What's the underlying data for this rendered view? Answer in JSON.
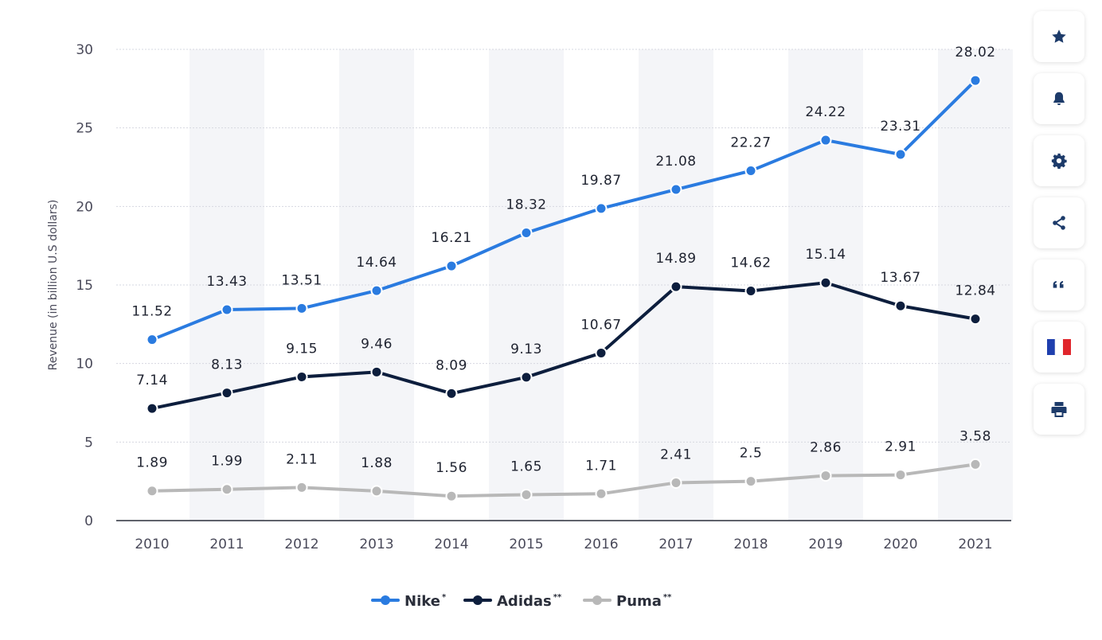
{
  "chart_data": {
    "type": "line",
    "categories": [
      "2010",
      "2011",
      "2012",
      "2013",
      "2014",
      "2015",
      "2016",
      "2017",
      "2018",
      "2019",
      "2020",
      "2021"
    ],
    "ylabel": "Revenue (in billion U.S dollars)",
    "xlabel": "",
    "ylim": [
      0,
      30
    ],
    "yticks": [
      0,
      5,
      10,
      15,
      20,
      25,
      30
    ],
    "ytick_labels": [
      "0",
      "5",
      "10",
      "15",
      "20",
      "25",
      "30"
    ],
    "grid": true,
    "legend_position": "bottom",
    "series": [
      {
        "name": "Nike",
        "marker": "*",
        "color": "#2a7be0",
        "values": [
          11.52,
          13.43,
          13.51,
          14.64,
          16.21,
          18.32,
          19.87,
          21.08,
          22.27,
          24.22,
          23.31,
          28.02
        ],
        "labels": [
          "11.52",
          "13.43",
          "13.51",
          "14.64",
          "16.21",
          "18.32",
          "19.87",
          "21.08",
          "22.27",
          "24.22",
          "23.31",
          "28.02"
        ]
      },
      {
        "name": "Adidas",
        "marker": "**",
        "color": "#0d1e3d",
        "values": [
          7.14,
          8.13,
          9.15,
          9.46,
          8.09,
          9.13,
          10.67,
          14.89,
          14.62,
          15.14,
          13.67,
          12.84
        ],
        "labels": [
          "7.14",
          "8.13",
          "9.15",
          "9.46",
          "8.09",
          "9.13",
          "10.67",
          "14.89",
          "14.62",
          "15.14",
          "13.67",
          "12.84"
        ]
      },
      {
        "name": "Puma",
        "marker": "**",
        "color": "#b8b8b8",
        "values": [
          1.89,
          1.99,
          2.11,
          1.88,
          1.56,
          1.65,
          1.71,
          2.41,
          2.5,
          2.86,
          2.91,
          3.58
        ],
        "labels": [
          "1.89",
          "1.99",
          "2.11",
          "1.88",
          "1.56",
          "1.65",
          "1.71",
          "2.41",
          "2.5",
          "2.86",
          "2.91",
          "3.58"
        ]
      }
    ]
  },
  "toolbar": {
    "icon_color": "#1d3b6a",
    "items": [
      {
        "name": "star-icon"
      },
      {
        "name": "bell-icon"
      },
      {
        "name": "gear-icon"
      },
      {
        "name": "share-icon"
      },
      {
        "name": "quote-icon"
      },
      {
        "name": "france-flag-icon"
      },
      {
        "name": "print-icon"
      }
    ]
  }
}
